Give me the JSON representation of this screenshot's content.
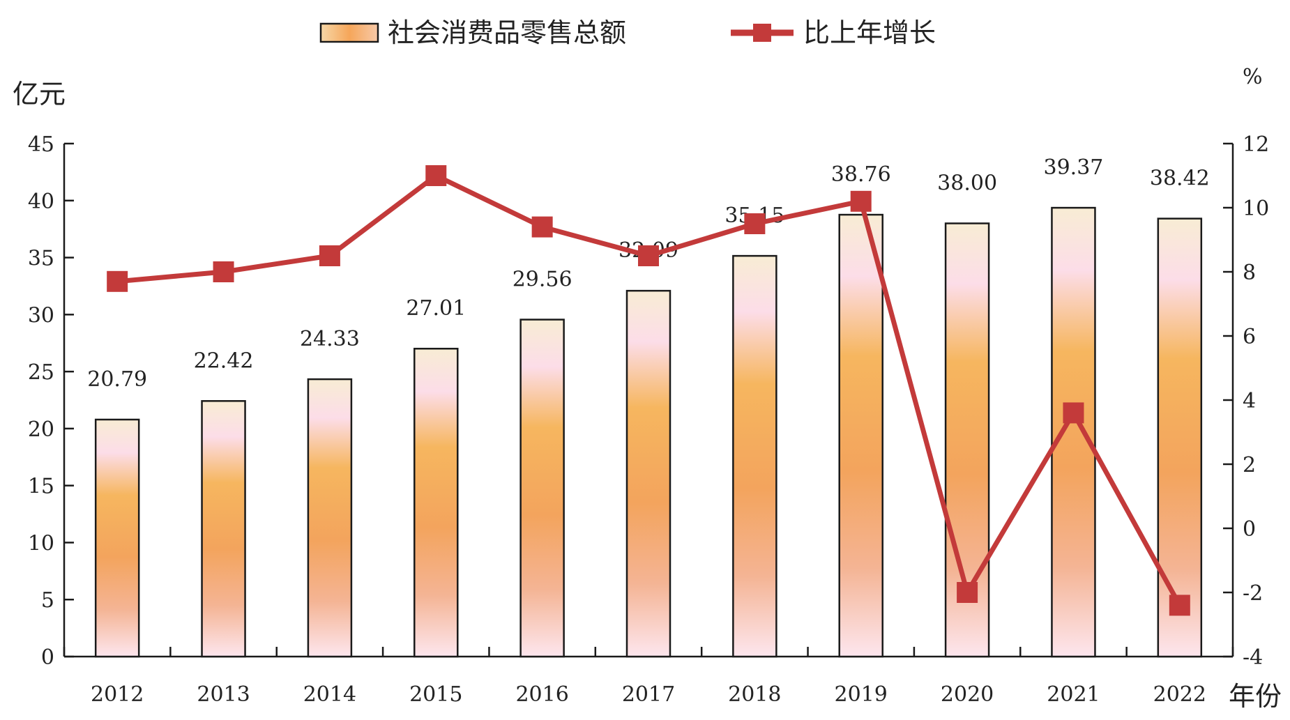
{
  "chart_data": {
    "type": "bar",
    "categories": [
      "2012",
      "2013",
      "2014",
      "2015",
      "2016",
      "2017",
      "2018",
      "2019",
      "2020",
      "2021",
      "2022"
    ],
    "series": [
      {
        "name": "社会消费品零售总额",
        "type": "bar",
        "axis": "left",
        "values": [
          20.79,
          22.42,
          24.33,
          27.01,
          29.56,
          32.09,
          35.15,
          38.76,
          38.0,
          39.37,
          38.42
        ],
        "value_labels": [
          "20.79",
          "22.42",
          "24.33",
          "27.01",
          "29.56",
          "32.09",
          "35.15",
          "38.76",
          "38.00",
          "39.37",
          "38.42"
        ]
      },
      {
        "name": "比上年增长",
        "type": "line",
        "axis": "right",
        "values": [
          7.7,
          8.0,
          8.5,
          11.0,
          9.4,
          8.5,
          9.5,
          10.2,
          -2.0,
          3.6,
          -2.4
        ]
      }
    ],
    "y_left": {
      "unit": "亿元",
      "ylim": [
        0,
        45
      ],
      "ticks": [
        "0",
        "5",
        "10",
        "15",
        "20",
        "25",
        "30",
        "35",
        "40",
        "45"
      ]
    },
    "y_right": {
      "unit": "%",
      "ylim": [
        -4,
        12
      ],
      "ticks": [
        "-4",
        "-2",
        "0",
        "2",
        "4",
        "6",
        "8",
        "10",
        "12"
      ]
    },
    "x_unit": "年份",
    "legend_position": "top",
    "colors": {
      "bar_top": "#f8ecd4",
      "bar_mid_light": "#fcdde8",
      "bar_mid": "#f6ac55",
      "bar_low": "#f19a68",
      "bar_bottom": "#fde6ee",
      "bar_border": "#1a1a1a",
      "line": "#c33a3a"
    },
    "grid": false
  }
}
